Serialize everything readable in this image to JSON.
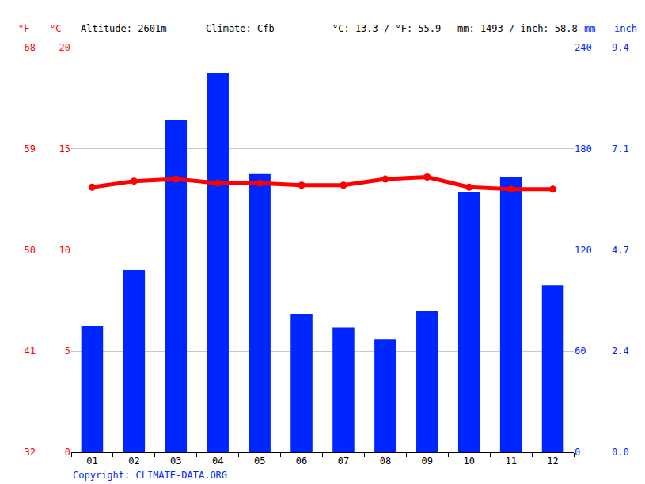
{
  "chart_data": {
    "type": "bar",
    "header": [
      "°F",
      "°C",
      "Altitude: 2601m",
      "Climate: Cfb",
      "°C: 13.3 / °F: 55.9",
      "mm: 1493 / inch: 58.8",
      "mm",
      "inch"
    ],
    "footer": "Copyright: CLIMATE-DATA.ORG",
    "categories": [
      "01",
      "02",
      "03",
      "04",
      "05",
      "06",
      "07",
      "08",
      "09",
      "10",
      "11",
      "12"
    ],
    "series": [
      {
        "type": "bar",
        "color": "#0026ff",
        "axis": "y",
        "values": [
          75,
          108,
          197,
          225,
          165,
          82,
          74,
          67,
          84,
          154,
          163,
          99
        ]
      },
      {
        "type": "line",
        "color": "#ff0000",
        "marker": "circle",
        "line_style": "solid",
        "axis": "y2",
        "values": [
          13.1,
          13.4,
          13.5,
          13.3,
          13.3,
          13.2,
          13.2,
          13.5,
          13.6,
          13.1,
          13.0,
          13.0
        ]
      }
    ],
    "ylim": [
      0,
      240
    ],
    "yticks": [
      0,
      60,
      120,
      180,
      240
    ],
    "y2lim": [
      0,
      20
    ],
    "y2ticks": [
      0,
      5,
      10,
      15,
      20
    ],
    "y3lim": [
      32,
      68
    ],
    "y3ticks": [
      32,
      41,
      50,
      59,
      68
    ],
    "y4lim": [
      0,
      9.449
    ],
    "y4ticks": [
      {
        "value": 0,
        "label": "0.0"
      },
      {
        "value": 2.362,
        "label": "2.4"
      },
      {
        "value": 4.724,
        "label": "4.7"
      },
      {
        "value": 7.087,
        "label": "7.1"
      },
      {
        "value": 9.449,
        "label": "9.4"
      }
    ],
    "grid": true
  }
}
